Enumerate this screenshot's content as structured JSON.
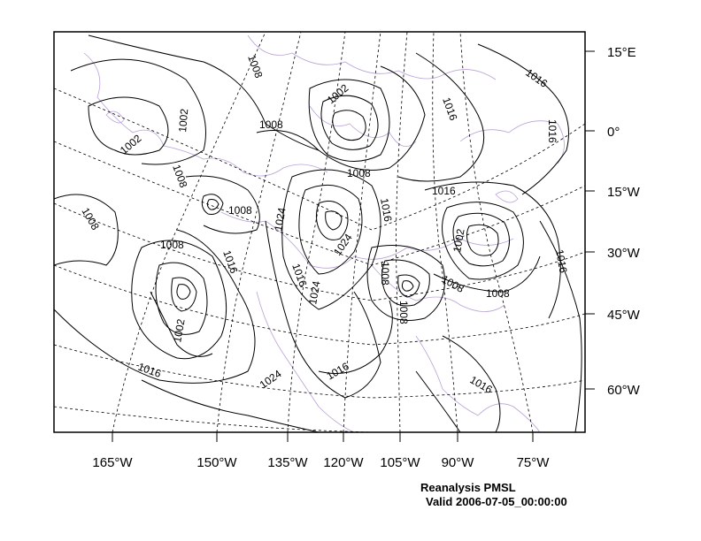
{
  "map": {
    "caption_title": "Reanalysis PMSL",
    "caption_valid": "Valid 2006-07-05_00:00:00",
    "bottom_axis_labels": [
      "165°W",
      "150°W",
      "135°W",
      "120°W",
      "105°W",
      "90°W",
      "75°W"
    ],
    "right_axis_labels": [
      "15°E",
      "0°",
      "15°W",
      "30°W",
      "45°W",
      "60°W"
    ],
    "contour_labels": [
      "1008",
      "1002",
      "1016",
      "1002",
      "1008",
      "1016",
      "1016",
      "1002",
      "1008",
      "1008",
      "1008",
      "1008",
      "1016",
      "1024",
      "1016",
      "1002",
      "1008",
      "1024",
      "1016",
      "1008",
      "1008",
      "1016",
      "1008",
      "1024",
      "1016",
      "1016",
      "1002",
      "1016",
      "1024",
      "1016",
      "1008"
    ],
    "colors": {
      "contour": "#000000",
      "coastline": "#b9a3d6",
      "grid": "#000000",
      "frame": "#000000"
    }
  }
}
